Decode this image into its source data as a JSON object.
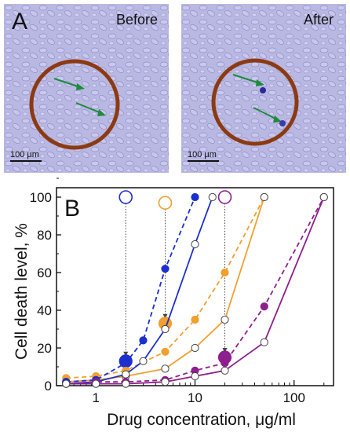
{
  "panel_a": {
    "letter": "A",
    "before_label": "Before",
    "after_label": "After",
    "scale_label": "100 μm"
  },
  "chart_data": {
    "type": "line",
    "panel_letter": "B",
    "xlabel": "Drug concentration, μg/ml",
    "ylabel": "Cell death level, %",
    "xscale": "log",
    "xlim": [
      0.4,
      250
    ],
    "ylim": [
      0,
      105
    ],
    "x_ticks": [
      1,
      10,
      100
    ],
    "x_tick_labels": [
      "1",
      "10",
      "100"
    ],
    "y_ticks": [
      0,
      20,
      40,
      60,
      80,
      100
    ],
    "y_tick_labels": [
      "0",
      "20",
      "40",
      "60",
      "80",
      "100"
    ],
    "grid": false,
    "series": [
      {
        "color": "#f0a030",
        "style": "dashed",
        "marker": "filled",
        "x": [
          0.5,
          1,
          2,
          5,
          10,
          20,
          50
        ],
        "y": [
          4,
          5,
          8,
          18,
          35,
          60,
          100
        ]
      },
      {
        "color": "#f0a030",
        "style": "solid",
        "marker": "open",
        "x": [
          0.5,
          1,
          2,
          5,
          10,
          20,
          50
        ],
        "y": [
          2,
          3,
          5,
          9,
          20,
          35,
          100
        ]
      },
      {
        "color": "#1c2fcf",
        "style": "dashed",
        "marker": "filled",
        "x": [
          0.5,
          1,
          2,
          3,
          5,
          10
        ],
        "y": [
          2,
          3,
          12,
          24,
          62,
          100
        ]
      },
      {
        "color": "#1c2fcf",
        "style": "solid",
        "marker": "open",
        "x": [
          0.5,
          1,
          2,
          3,
          5,
          10,
          15
        ],
        "y": [
          1,
          2,
          6,
          13,
          30,
          75,
          100
        ]
      },
      {
        "color": "#8e1f8e",
        "style": "dashed",
        "marker": "filled",
        "x": [
          0.5,
          1,
          2,
          5,
          10,
          20,
          50,
          200
        ],
        "y": [
          1,
          2,
          2,
          3,
          8,
          12,
          42,
          100
        ]
      },
      {
        "color": "#8e1f8e",
        "style": "solid",
        "marker": "open",
        "x": [
          0.5,
          1,
          2,
          5,
          10,
          20,
          50,
          200
        ],
        "y": [
          1,
          1,
          1,
          2,
          5,
          8,
          23,
          100
        ]
      }
    ],
    "annotations": [
      {
        "color": "#1c2fcf",
        "x": 2,
        "y_top": 100,
        "y_bottom": 13
      },
      {
        "color": "#f0a030",
        "x": 5,
        "y_top": 97,
        "y_bottom": 33
      },
      {
        "color": "#8e1f8e",
        "x": 20,
        "y_top": 100,
        "y_bottom": 15
      }
    ]
  }
}
